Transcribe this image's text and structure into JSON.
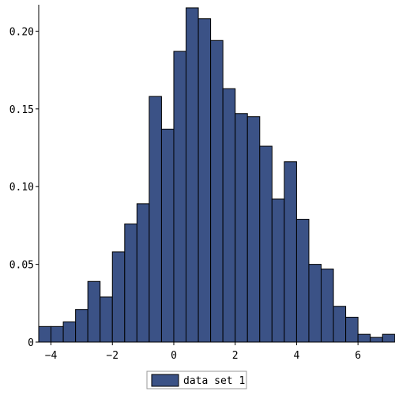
{
  "chart_data": {
    "type": "bar",
    "title": "",
    "xlabel": "",
    "ylabel": "",
    "bin_width": 0.4,
    "first_bin_start": -4.4,
    "values": [
      0.01,
      0.01,
      0.013,
      0.021,
      0.039,
      0.029,
      0.058,
      0.076,
      0.089,
      0.158,
      0.137,
      0.187,
      0.215,
      0.208,
      0.194,
      0.163,
      0.147,
      0.145,
      0.126,
      0.092,
      0.116,
      0.079,
      0.05,
      0.047,
      0.023,
      0.016,
      0.005,
      0.003,
      0.005
    ],
    "xlim": [
      -4.4,
      7.0
    ],
    "ylim": [
      0,
      0.217
    ],
    "x_ticks": [
      -4,
      -2,
      0,
      2,
      4,
      6
    ],
    "x_tick_labels": [
      "−4",
      "−2",
      "0",
      "2",
      "4",
      "6"
    ],
    "y_ticks": [
      0,
      0.05,
      0.1,
      0.15,
      0.2
    ],
    "y_tick_labels": [
      "0",
      "0.05",
      "0.10",
      "0.15",
      "0.20"
    ],
    "grid": false,
    "series": [
      {
        "name": "data set 1",
        "color": "#3b5286",
        "edge_color": "#000000"
      }
    ],
    "legend": {
      "position": "bottom-center",
      "label": "data set 1"
    }
  }
}
